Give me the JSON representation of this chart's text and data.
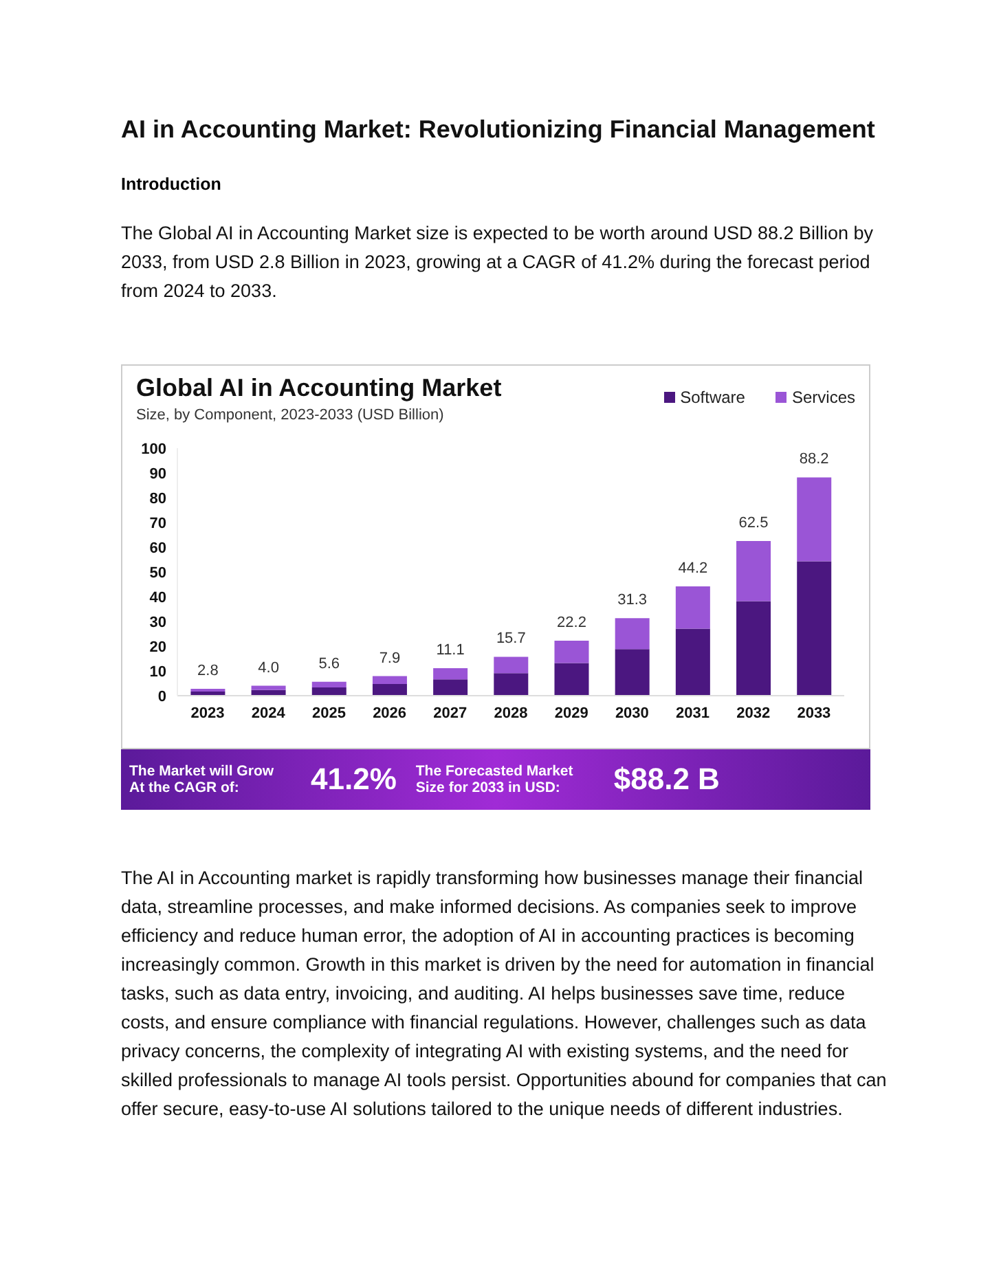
{
  "chart_data": {
    "type": "bar",
    "title": "Global AI in Accounting Market",
    "subtitle": "Size, by Component, 2023-2033 (USD Billion)",
    "categories": [
      "2023",
      "2024",
      "2025",
      "2026",
      "2027",
      "2028",
      "2029",
      "2030",
      "2031",
      "2032",
      "2033"
    ],
    "series": [
      {
        "name": "Software",
        "color": "#4b1780",
        "values": [
          1.7,
          2.3,
          3.3,
          4.7,
          6.6,
          9.1,
          13.2,
          18.8,
          27.1,
          38.2,
          54.3
        ]
      },
      {
        "name": "Services",
        "color": "#9a55d6",
        "values": [
          1.1,
          1.7,
          2.3,
          3.2,
          4.5,
          6.6,
          9.0,
          12.5,
          17.1,
          24.3,
          33.9
        ]
      }
    ],
    "stacked": true,
    "totals": [
      "2.8",
      "4.0",
      "5.6",
      "7.9",
      "11.1",
      "15.7",
      "22.2",
      "31.3",
      "44.2",
      "62.5",
      "88.2"
    ],
    "ylim": [
      0,
      100
    ],
    "yticks": [
      0,
      10,
      20,
      30,
      40,
      50,
      60,
      70,
      80,
      90,
      100
    ],
    "grid": false,
    "legend": "top right",
    "annotations": [
      "AI in Accounting Market: Revolutionizing Financial Management",
      "Introduction",
      "The Global AI in Accounting Market size is expected to be worth around USD 88.2 Billion by 2033, from USD 2.8 Billion in 2023, growing at a CAGR of 41.2% during the forecast period from 2024 to 2033.",
      "The Market will Grow At the CAGR of:",
      "41.2%",
      "The Forecasted Market Size for 2033 in USD:",
      "$88.2 B",
      "The AI in Accounting market is rapidly transforming how businesses manage their financial data, streamline processes, and make informed decisions. As companies seek to improve efficiency and reduce human error, the adoption of AI in accounting practices is becoming increasingly common. Growth in this market is driven by the need for automation in financial tasks, such as data entry, invoicing, and auditing. AI helps businesses save time, reduce costs, and ensure compliance with financial regulations. However, challenges such as data privacy concerns, the complexity of integrating AI with existing systems, and the need for skilled professionals to manage AI tools persist. Opportunities abound for companies that can offer secure, easy-to-use AI solutions tailored to the unique needs of different industries."
    ]
  }
}
